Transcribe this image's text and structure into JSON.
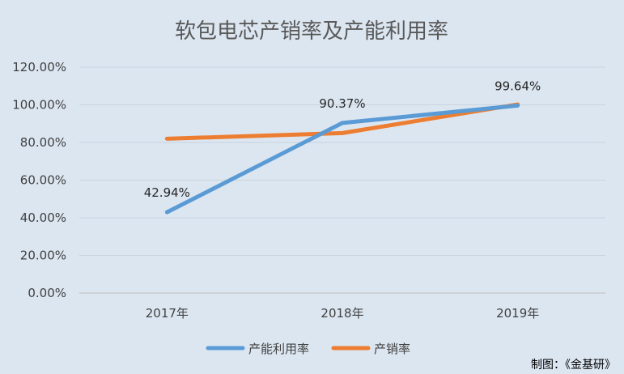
{
  "chart_data": {
    "type": "line",
    "title": "软包电芯产销率及产能利用率",
    "xlabel": "",
    "ylabel": "",
    "categories": [
      "2017年",
      "2018年",
      "2019年"
    ],
    "ylim": [
      0,
      120
    ],
    "yticks": [
      "0.00%",
      "20.00%",
      "40.00%",
      "60.00%",
      "80.00%",
      "100.00%",
      "120.00%"
    ],
    "grid": true,
    "legend_position": "bottom",
    "series": [
      {
        "name": "产能利用率",
        "values": [
          42.94,
          90.37,
          99.64
        ],
        "labels": [
          "42.94%",
          "90.37%",
          "99.64%"
        ],
        "color": "#5b9bd5"
      },
      {
        "name": "产销率",
        "values": [
          82.0,
          85.0,
          100.2
        ],
        "color": "#ed7d31"
      }
    ]
  },
  "footer": {
    "credit": "制图：《金基研》"
  }
}
